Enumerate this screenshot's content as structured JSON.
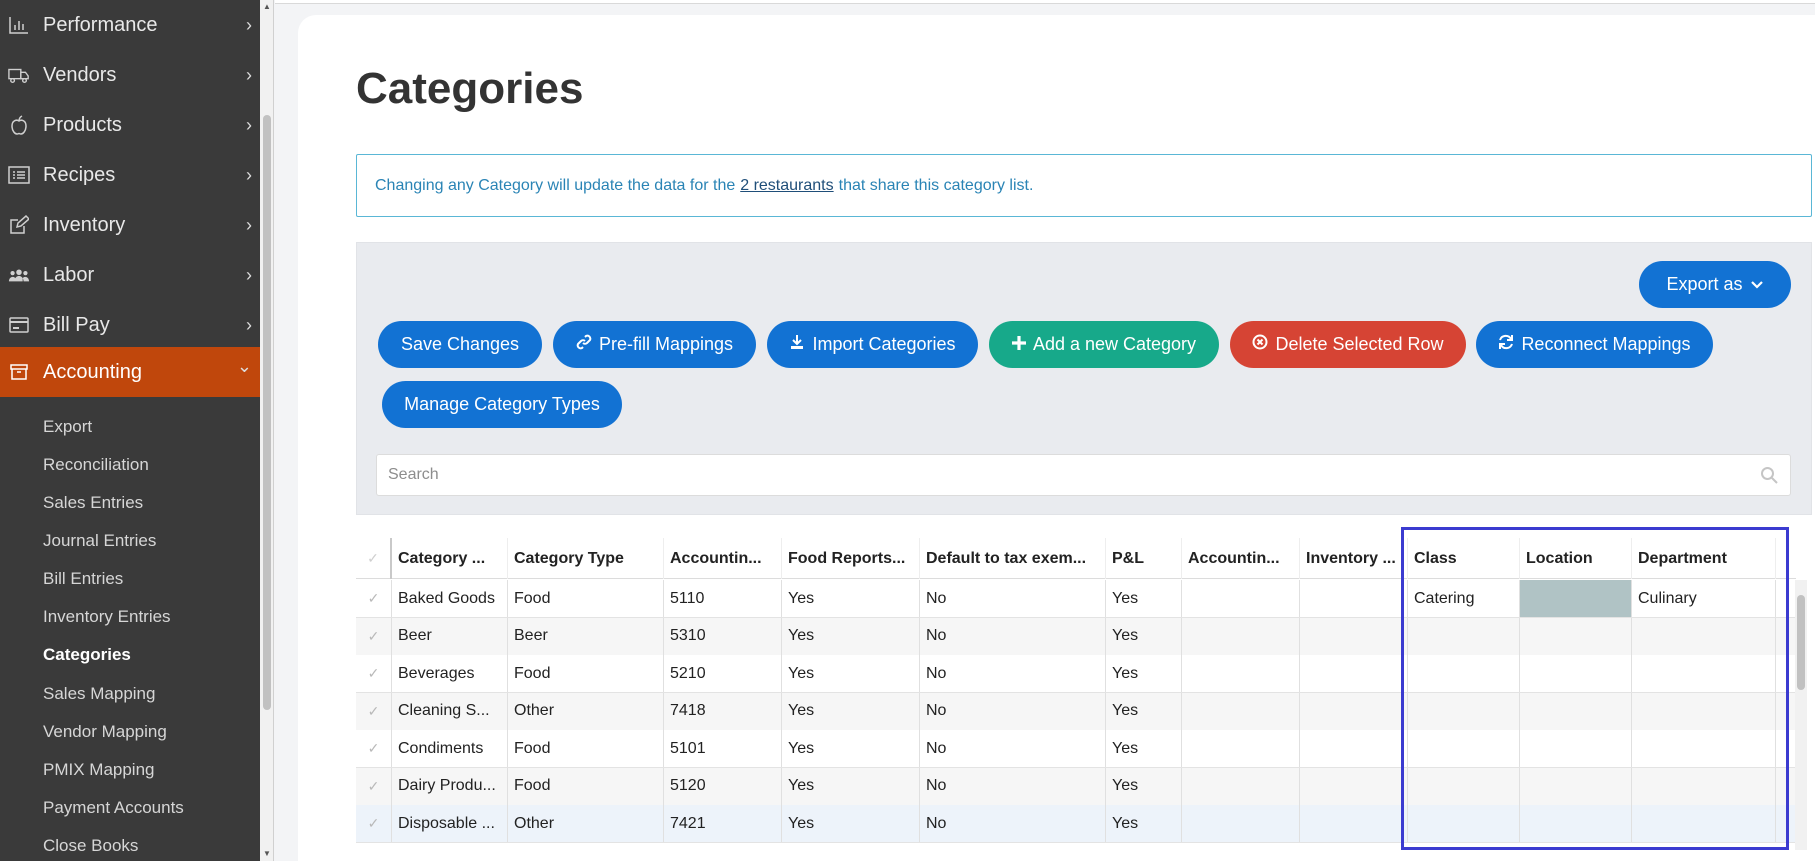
{
  "sidebar": {
    "items": [
      {
        "label": "Performance",
        "icon": "bar-chart-icon"
      },
      {
        "label": "Vendors",
        "icon": "truck-icon"
      },
      {
        "label": "Products",
        "icon": "apple-icon"
      },
      {
        "label": "Recipes",
        "icon": "list-icon"
      },
      {
        "label": "Inventory",
        "icon": "edit-icon"
      },
      {
        "label": "Labor",
        "icon": "users-icon"
      },
      {
        "label": "Bill Pay",
        "icon": "credit-card-icon"
      },
      {
        "label": "Accounting",
        "icon": "archive-icon"
      }
    ],
    "chevron": "›",
    "chevron_open": "⌄",
    "sub_items": [
      "Export",
      "Reconciliation",
      "Sales Entries",
      "Journal Entries",
      "Bill Entries",
      "Inventory Entries",
      "Categories",
      "Sales Mapping",
      "Vendor Mapping",
      "PMIX Mapping",
      "Payment Accounts",
      "Close Books"
    ]
  },
  "page": {
    "title": "Categories",
    "info": {
      "before": "Changing any Category will update the data for the",
      "link": "2 restaurants",
      "after": "that share this category list."
    }
  },
  "toolbar": {
    "export_as": "Export as",
    "save_changes": "Save Changes",
    "prefill_mappings": "Pre-fill Mappings",
    "import_categories": "Import Categories",
    "add_category": "Add a new Category",
    "delete_row": "Delete Selected Row",
    "reconnect_mappings": "Reconnect Mappings",
    "manage_types": "Manage Category Types",
    "search_placeholder": "Search"
  },
  "grid": {
    "columns": [
      "Category ...",
      "Category Type",
      "Accountin...",
      "Food Reports...",
      "Default to tax exem...",
      "P&L",
      "Accountin...",
      "Inventory ...",
      "Class",
      "Location",
      "Department"
    ],
    "rows": [
      [
        "Baked Goods",
        "Food",
        "5110",
        "Yes",
        "No",
        "Yes",
        "",
        "",
        "Catering",
        "",
        "Culinary"
      ],
      [
        "Beer",
        "Beer",
        "5310",
        "Yes",
        "No",
        "Yes",
        "",
        "",
        "",
        "",
        ""
      ],
      [
        "Beverages",
        "Food",
        "5210",
        "Yes",
        "No",
        "Yes",
        "",
        "",
        "",
        "",
        ""
      ],
      [
        "Cleaning S...",
        "Other",
        "7418",
        "Yes",
        "No",
        "Yes",
        "",
        "",
        "",
        "",
        ""
      ],
      [
        "Condiments",
        "Food",
        "5101",
        "Yes",
        "No",
        "Yes",
        "",
        "",
        "",
        "",
        ""
      ],
      [
        "Dairy Produ...",
        "Food",
        "5120",
        "Yes",
        "No",
        "Yes",
        "",
        "",
        "",
        "",
        ""
      ],
      [
        "Disposable ...",
        "Other",
        "7421",
        "Yes",
        "No",
        "Yes",
        "",
        "",
        "",
        "",
        ""
      ]
    ]
  },
  "colors": {
    "sidebar_bg": "#3a3a3a",
    "active_nav": "#c0470c",
    "primary": "#1272d3",
    "success": "#17a98a",
    "danger": "#d64434",
    "highlight": "#3b3bd0"
  }
}
